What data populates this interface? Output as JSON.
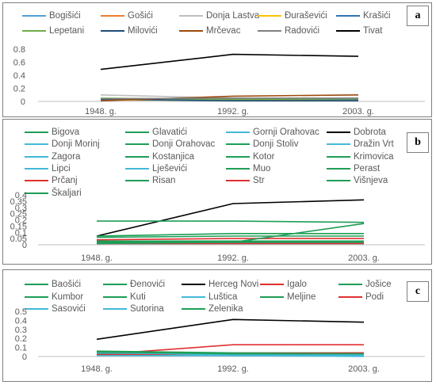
{
  "chart_data": [
    {
      "panel_label": "a",
      "type": "line",
      "categories": [
        "1948. g.",
        "1992. g.",
        "2003. g."
      ],
      "yticks": [
        "0",
        "0.2",
        "0.4",
        "0.6",
        "0.8"
      ],
      "ylim": [
        0,
        0.8
      ],
      "series": [
        {
          "name": "Bogišići",
          "color": "#4e9fd6",
          "values": [
            0.03,
            0.02,
            0.02
          ]
        },
        {
          "name": "Gošići",
          "color": "#ed7d31",
          "values": [
            0.04,
            0.03,
            0.03
          ]
        },
        {
          "name": "Donja Lastva",
          "color": "#bfbfbf",
          "values": [
            0.1,
            0.05,
            0.05
          ]
        },
        {
          "name": "Đuraševići",
          "color": "#ffc000",
          "values": [
            0.02,
            0.02,
            0.02
          ]
        },
        {
          "name": "Krašići",
          "color": "#2e75b6",
          "values": [
            0.03,
            0.03,
            0.03
          ]
        },
        {
          "name": "Lepetani",
          "color": "#70ad47",
          "values": [
            0.05,
            0.03,
            0.04
          ]
        },
        {
          "name": "Milovići",
          "color": "#1f4e79",
          "values": [
            0.03,
            0.01,
            0.01
          ]
        },
        {
          "name": "Mrčevac",
          "color": "#9e480e",
          "values": [
            0.01,
            0.08,
            0.1
          ]
        },
        {
          "name": "Radovići",
          "color": "#7f7f7f",
          "values": [
            0.04,
            0.05,
            0.05
          ]
        },
        {
          "name": "Tivat",
          "color": "#000000",
          "values": [
            0.49,
            0.72,
            0.69
          ]
        }
      ]
    },
    {
      "panel_label": "b",
      "type": "line",
      "categories": [
        "1948. g.",
        "1992. g.",
        "2003. g."
      ],
      "yticks": [
        "0",
        "0.05",
        "0.1",
        "0.15",
        "0.2",
        "0.25",
        "0.3",
        "0.35",
        "0.4"
      ],
      "ylim": [
        0,
        0.4
      ],
      "series": [
        {
          "name": "Bigova",
          "color": "#1e9e56",
          "values": [
            0.01,
            0.01,
            0.01
          ]
        },
        {
          "name": "Glavatići",
          "color": "#1e9e56",
          "values": [
            0.02,
            0.02,
            0.02
          ]
        },
        {
          "name": "Gornji Orahovac",
          "color": "#44b8d8",
          "values": [
            0.02,
            0.02,
            0.02
          ]
        },
        {
          "name": "Dobrota",
          "color": "#000000",
          "values": [
            0.07,
            0.33,
            0.36
          ]
        },
        {
          "name": "Donji Morinj",
          "color": "#44b8d8",
          "values": [
            0.03,
            0.03,
            0.03
          ]
        },
        {
          "name": "Donji Orahovac",
          "color": "#1e9e56",
          "values": [
            0.02,
            0.02,
            0.02
          ]
        },
        {
          "name": "Donji Stoliv",
          "color": "#1e9e56",
          "values": [
            0.03,
            0.02,
            0.02
          ]
        },
        {
          "name": "Dražin Vrt",
          "color": "#44b8d8",
          "values": [
            0.01,
            0.01,
            0.01
          ]
        },
        {
          "name": "Zagora",
          "color": "#44b8d8",
          "values": [
            0.02,
            0.02,
            0.02
          ]
        },
        {
          "name": "Kostanjica",
          "color": "#1e9e56",
          "values": [
            0.03,
            0.02,
            0.02
          ]
        },
        {
          "name": "Kotor",
          "color": "#1e9e56",
          "values": [
            0.19,
            0.19,
            0.18
          ]
        },
        {
          "name": "Krimovica",
          "color": "#1e9e56",
          "values": [
            0.03,
            0.03,
            0.03
          ]
        },
        {
          "name": "Lipci",
          "color": "#44b8d8",
          "values": [
            0.01,
            0.01,
            0.01
          ]
        },
        {
          "name": "Lješevići",
          "color": "#44b8d8",
          "values": [
            0.02,
            0.02,
            0.02
          ]
        },
        {
          "name": "Muo",
          "color": "#1e9e56",
          "values": [
            0.06,
            0.07,
            0.07
          ]
        },
        {
          "name": "Perast",
          "color": "#1e9e56",
          "values": [
            0.02,
            0.02,
            0.02
          ]
        },
        {
          "name": "Prčanj",
          "color": "#e03030",
          "values": [
            0.04,
            0.05,
            0.05
          ]
        },
        {
          "name": "Risan",
          "color": "#1e9e56",
          "values": [
            0.07,
            0.09,
            0.09
          ]
        },
        {
          "name": "Str",
          "color": "#e03030",
          "values": [
            0.01,
            0.01,
            0.01
          ]
        },
        {
          "name": "Višnjeva",
          "color": "#1e9e56",
          "values": [
            0.02,
            0.02,
            0.02
          ]
        },
        {
          "name": "Škaljari",
          "color": "#1e9e56",
          "values": [
            0.01,
            0.02,
            0.17
          ]
        }
      ]
    },
    {
      "panel_label": "c",
      "type": "line",
      "categories": [
        "1948. g.",
        "1992. g.",
        "2003. g."
      ],
      "yticks": [
        "0",
        "0.1",
        "0.2",
        "0.3",
        "0.4",
        "0.5"
      ],
      "ylim": [
        0,
        0.5
      ],
      "series": [
        {
          "name": "Baošići",
          "color": "#1e9e56",
          "values": [
            0.05,
            0.03,
            0.03
          ]
        },
        {
          "name": "Đenovići",
          "color": "#1e9e56",
          "values": [
            0.04,
            0.03,
            0.02
          ]
        },
        {
          "name": "Herceg Novi",
          "color": "#000000",
          "values": [
            0.19,
            0.41,
            0.38
          ]
        },
        {
          "name": "Igalo",
          "color": "#e03030",
          "values": [
            0.02,
            0.13,
            0.13
          ]
        },
        {
          "name": "Jošice",
          "color": "#1e9e56",
          "values": [
            0.02,
            0.02,
            0.02
          ]
        },
        {
          "name": "Kumbor",
          "color": "#1e9e56",
          "values": [
            0.06,
            0.04,
            0.04
          ]
        },
        {
          "name": "Kuti",
          "color": "#1e9e56",
          "values": [
            0.03,
            0.02,
            0.02
          ]
        },
        {
          "name": "Luštica",
          "color": "#44b8d8",
          "values": [
            0.04,
            0.01,
            0.0
          ]
        },
        {
          "name": "Meljine",
          "color": "#1e9e56",
          "values": [
            0.03,
            0.03,
            0.03
          ]
        },
        {
          "name": "Podi",
          "color": "#e03030",
          "values": [
            0.02,
            0.03,
            0.04
          ]
        },
        {
          "name": "Sasovići",
          "color": "#44b8d8",
          "values": [
            0.01,
            0.01,
            0.01
          ]
        },
        {
          "name": "Sutorina",
          "color": "#44b8d8",
          "values": [
            0.04,
            0.02,
            0.02
          ]
        },
        {
          "name": "Zelenika",
          "color": "#1e9e56",
          "values": [
            0.05,
            0.03,
            0.03
          ]
        }
      ]
    }
  ]
}
